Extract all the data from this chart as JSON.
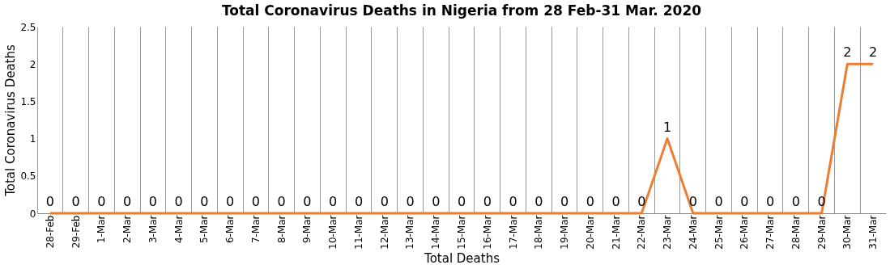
{
  "chart_data": {
    "type": "line",
    "title": "Total Coronavirus Deaths in Nigeria from 28 Feb-31 Mar. 2020",
    "xlabel": "Total Deaths",
    "ylabel": "Total Coronavirus Deaths",
    "categories": [
      "28-Feb",
      "29-Feb",
      "1-Mar",
      "2-Mar",
      "3-Mar",
      "4-Mar",
      "5-Mar",
      "6-Mar",
      "7-Mar",
      "8-Mar",
      "9-Mar",
      "10-Mar",
      "11-Mar",
      "12-Mar",
      "13-Mar",
      "14-Mar",
      "15-Mar",
      "16-Mar",
      "17-Mar",
      "18-Mar",
      "19-Mar",
      "20-Mar",
      "21-Mar",
      "22-Mar",
      "23-Mar",
      "24-Mar",
      "25-Mar",
      "26-Mar",
      "27-Mar",
      "28-Mar",
      "29-Mar",
      "30-Mar",
      "31-Mar"
    ],
    "values": [
      0,
      0,
      0,
      0,
      0,
      0,
      0,
      0,
      0,
      0,
      0,
      0,
      0,
      0,
      0,
      0,
      0,
      0,
      0,
      0,
      0,
      0,
      0,
      0,
      1,
      0,
      0,
      0,
      0,
      0,
      0,
      2,
      2
    ],
    "color": "#ed7d31",
    "ylim": [
      0,
      2.5
    ],
    "yticks": [
      0,
      0.5,
      1,
      1.5,
      2,
      2.5
    ],
    "grid": "x",
    "data_labels": true
  }
}
